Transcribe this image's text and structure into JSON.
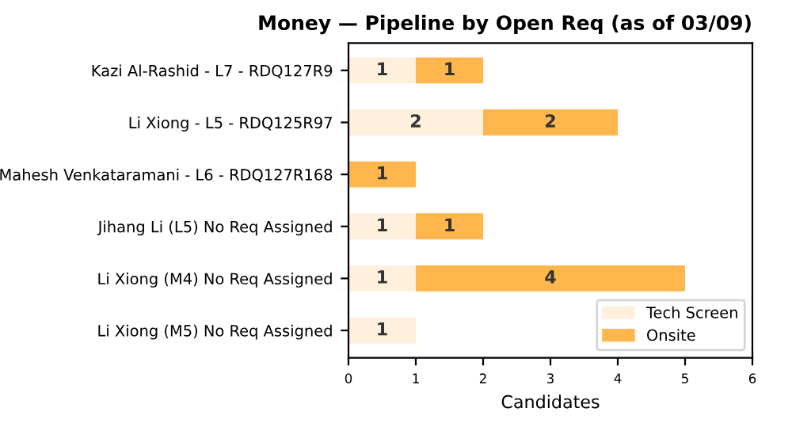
{
  "chart_data": {
    "type": "bar",
    "orientation": "horizontal",
    "stacked": true,
    "title": "Money — Pipeline by Open Req (as of 03/09)",
    "xlabel": "Candidates",
    "categories": [
      "Kazi Al-Rashid - L7 - RDQ127R9",
      "Li Xiong - L5 - RDQ125R97",
      "Mahesh Venkataramani - L6 - RDQ127R168",
      "Jihang Li (L5) No Req Assigned",
      "Li Xiong (M4) No Req Assigned",
      "Li Xiong (M5) No Req Assigned"
    ],
    "series": [
      {
        "name": "Tech Screen",
        "color": "#fef0dc",
        "values": [
          1,
          2,
          null,
          1,
          1,
          1
        ]
      },
      {
        "name": "Onsite",
        "color": "#ffb74d",
        "values": [
          1,
          2,
          1,
          1,
          4,
          null
        ]
      }
    ],
    "xlim": [
      0,
      6
    ],
    "xticks": [
      0,
      1,
      2,
      3,
      4,
      5,
      6
    ],
    "data_labels": true,
    "legend": "bottom right"
  }
}
